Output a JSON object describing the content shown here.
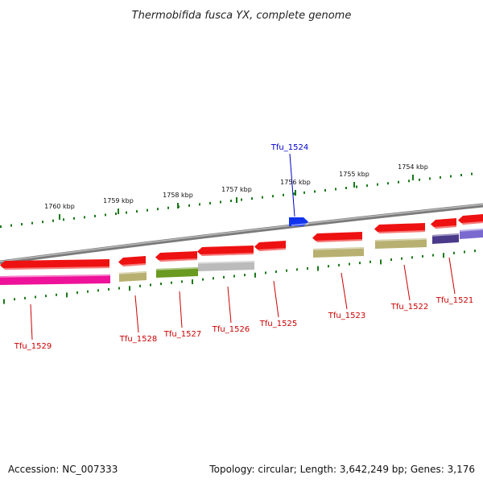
{
  "title": "Thermobifida fusca YX, complete genome",
  "footer": {
    "accession": "Accession: NC_007333",
    "topology": "Topology: circular; Length: 3,642,249 bp; Genes: 3,176"
  },
  "colors": {
    "backbone": "#8a8a8a",
    "tick": "#1a7a1a",
    "label_red": "#cc0000",
    "label_blue": "#0000cc",
    "gene_red": "#ee1111",
    "gene_blue": "#1133ee"
  },
  "scale_ticks": [
    {
      "label": "1760 kbp",
      "kbp": 1760
    },
    {
      "label": "1759 kbp",
      "kbp": 1759
    },
    {
      "label": "1758 kbp",
      "kbp": 1758
    },
    {
      "label": "1757 kbp",
      "kbp": 1757
    },
    {
      "label": "1756 kbp",
      "kbp": 1756
    },
    {
      "label": "1755 kbp",
      "kbp": 1755
    },
    {
      "label": "1754 kbp",
      "kbp": 1754
    }
  ],
  "genes": [
    {
      "label": "Tfu_1529",
      "strand": "-",
      "color": "#ee1111",
      "cog_color": "#ee1199"
    },
    {
      "label": "Tfu_1528",
      "strand": "-",
      "color": "#ee1111",
      "cog_color": "#b8b070"
    },
    {
      "label": "Tfu_1527",
      "strand": "-",
      "color": "#ee1111",
      "cog_color": "#6a9a20"
    },
    {
      "label": "Tfu_1526",
      "strand": "-",
      "color": "#ee1111",
      "cog_color": "#bbbbbb"
    },
    {
      "label": "Tfu_1525",
      "strand": "-",
      "color": "#ee1111",
      "cog_color": ""
    },
    {
      "label": "Tfu_1524",
      "strand": "+",
      "color": "#1133ee",
      "cog_color": ""
    },
    {
      "label": "Tfu_1523",
      "strand": "-",
      "color": "#ee1111",
      "cog_color": "#b8b070"
    },
    {
      "label": "Tfu_1522",
      "strand": "-",
      "color": "#ee1111",
      "cog_color": "#b8b070"
    },
    {
      "label": "Tfu_1521",
      "strand": "-",
      "color": "#ee1111",
      "cog_color": "#4a3a8a"
    },
    {
      "label": "",
      "strand": "-",
      "color": "#ee1111",
      "cog_color": "#7a6ad0"
    }
  ]
}
